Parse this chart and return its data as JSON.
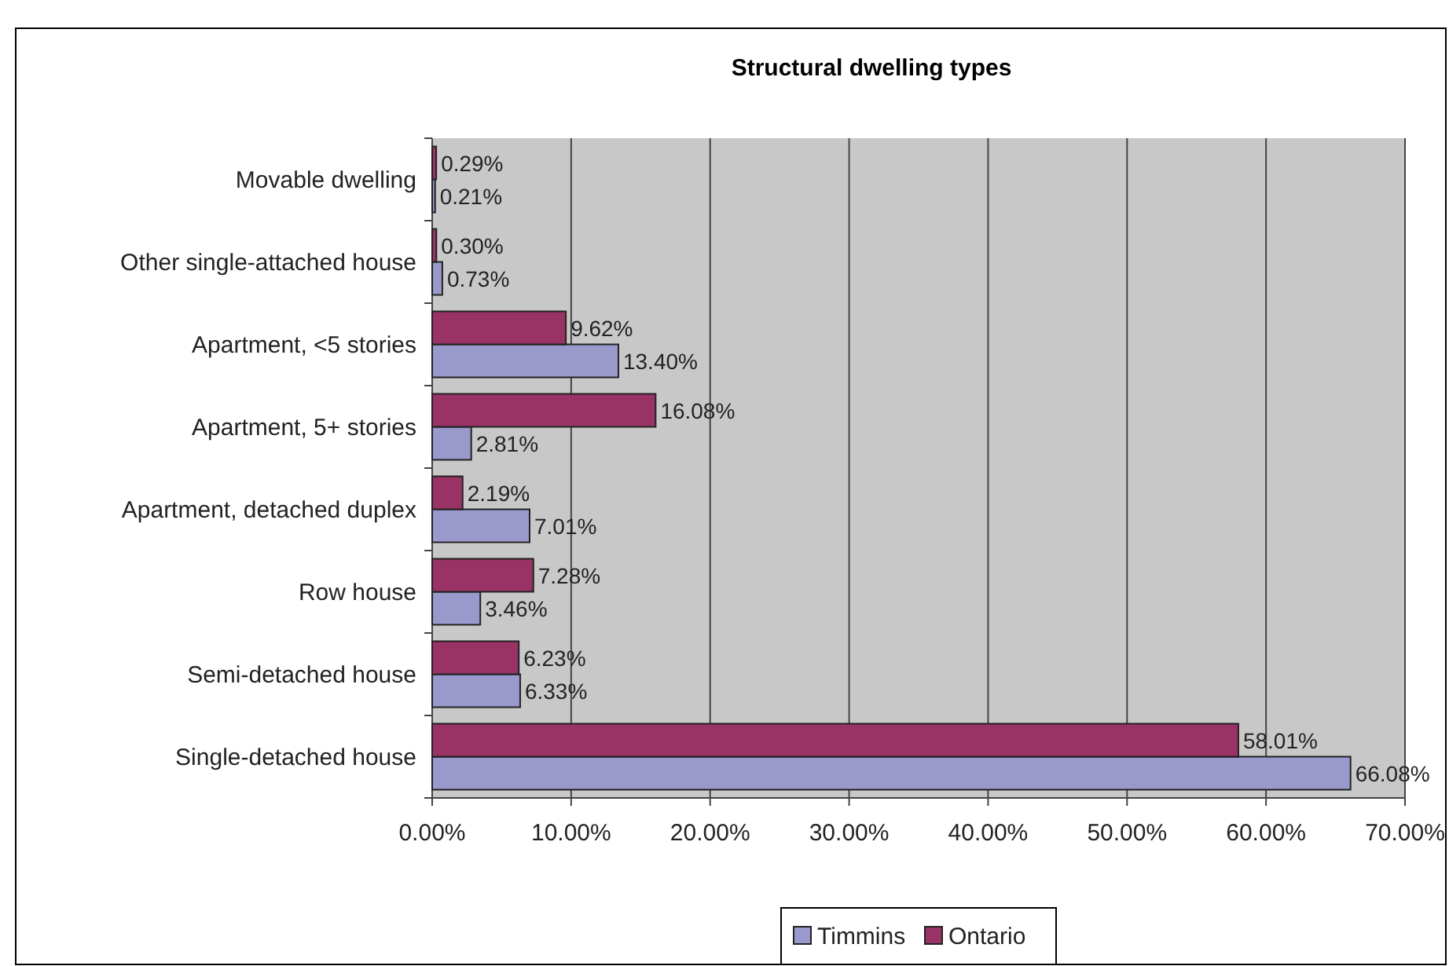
{
  "chart_data": {
    "type": "bar",
    "orientation": "horizontal",
    "title": "Structural dwelling types",
    "categories": [
      "Movable dwelling",
      "Other single-attached house",
      "Apartment, <5 stories",
      "Apartment, 5+ stories",
      "Apartment, detached duplex",
      "Row house",
      "Semi-detached house",
      "Single-detached house"
    ],
    "series": [
      {
        "name": "Timmins",
        "color": "#9999cc",
        "values": [
          0.21,
          0.73,
          13.4,
          2.81,
          7.01,
          3.46,
          6.33,
          66.08
        ],
        "value_labels": [
          "0.21%",
          "0.73%",
          "13.40%",
          "2.81%",
          "7.01%",
          "3.46%",
          "6.33%",
          "66.08%"
        ]
      },
      {
        "name": "Ontario",
        "color": "#993366",
        "values": [
          0.29,
          0.3,
          9.62,
          16.08,
          2.19,
          7.28,
          6.23,
          58.01
        ],
        "value_labels": [
          "0.29%",
          "0.30%",
          "9.62%",
          "16.08%",
          "2.19%",
          "7.28%",
          "6.23%",
          "58.01%"
        ]
      }
    ],
    "xlim": [
      0,
      70
    ],
    "xticks": [
      {
        "value": 0,
        "label": "0.00%"
      },
      {
        "value": 10,
        "label": "10.00%"
      },
      {
        "value": 20,
        "label": "20.00%"
      },
      {
        "value": 30,
        "label": "30.00%"
      },
      {
        "value": 40,
        "label": "40.00%"
      },
      {
        "value": 50,
        "label": "50.00%"
      },
      {
        "value": 60,
        "label": "60.00%"
      },
      {
        "value": 70,
        "label": "70.00%"
      }
    ],
    "grid": "x",
    "legend": "bottom"
  }
}
